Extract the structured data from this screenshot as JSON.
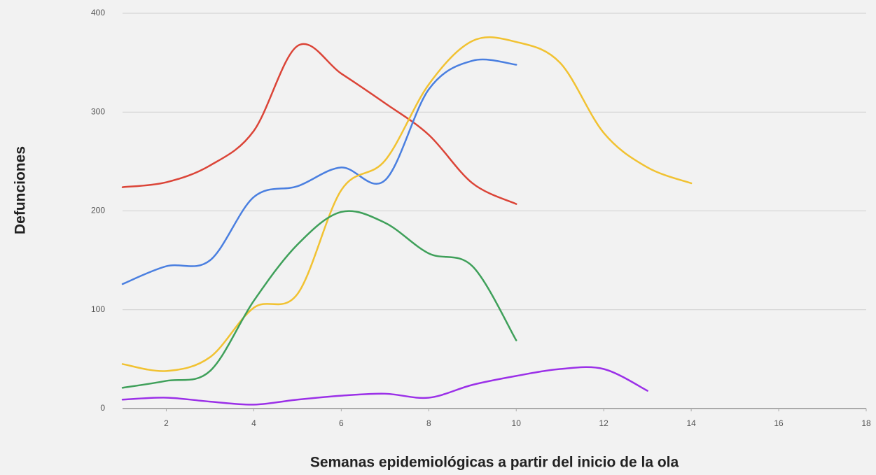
{
  "chart_data": {
    "type": "line",
    "x_label": "Semanas epidemiológicas a partir del  inicio de la ola",
    "y_label": "Defunciones",
    "x": [
      1,
      2,
      3,
      4,
      5,
      6,
      7,
      8,
      9,
      10,
      11,
      12,
      13,
      14
    ],
    "series": [
      {
        "color": "#db4437",
        "values": [
          224,
          229,
          246,
          281,
          367,
          339,
          309,
          277,
          228,
          207,
          null,
          null,
          null,
          null
        ]
      },
      {
        "color": "#4a7fe0",
        "values": [
          126,
          144,
          150,
          214,
          225,
          244,
          231,
          323,
          352,
          348,
          null,
          null,
          null,
          null
        ]
      },
      {
        "color": "#f1c232",
        "values": [
          45,
          38,
          52,
          102,
          116,
          221,
          251,
          328,
          372,
          371,
          350,
          279,
          244,
          228
        ]
      },
      {
        "color": "#3fa05a",
        "values": [
          21,
          28,
          38,
          109,
          166,
          199,
          188,
          157,
          144,
          69,
          null,
          null,
          null,
          null
        ]
      },
      {
        "color": "#9b30e8",
        "values": [
          9,
          11,
          7,
          4,
          9,
          13,
          15,
          11,
          24,
          33,
          40,
          40,
          18,
          null
        ]
      }
    ],
    "xlim": [
      1,
      18
    ],
    "xticks": [
      2,
      4,
      6,
      8,
      10,
      12,
      14,
      16,
      18
    ],
    "ylim": [
      0,
      400
    ],
    "yticks": [
      0,
      100,
      200,
      300,
      400
    ],
    "grid": true
  }
}
